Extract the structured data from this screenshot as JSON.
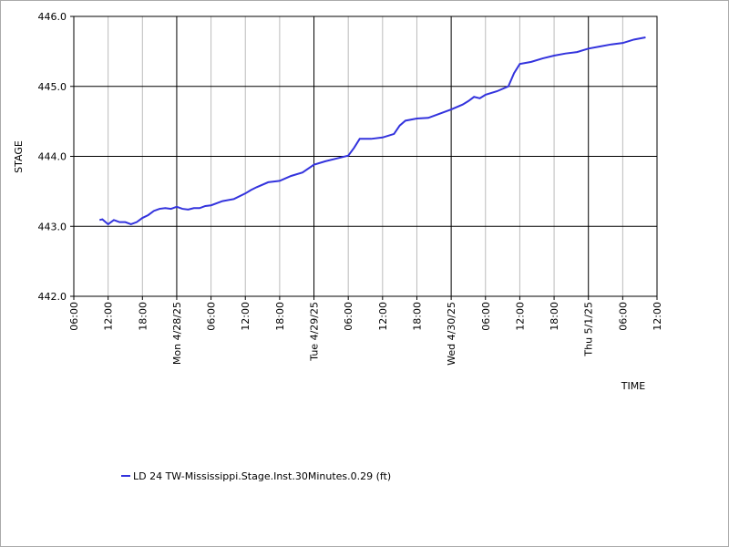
{
  "chart_data": {
    "type": "line",
    "x_label": "TIME",
    "y_label": "STAGE",
    "xlim": [
      "2025-04-27T06:00",
      "2025-05-01T12:00"
    ],
    "xticks": [
      {
        "value": "2025-04-27T06:00",
        "label": "06:00"
      },
      {
        "value": "2025-04-27T12:00",
        "label": "12:00"
      },
      {
        "value": "2025-04-27T18:00",
        "label": "18:00"
      },
      {
        "value": "2025-04-28T00:00",
        "label": "Mon 4/28/25"
      },
      {
        "value": "2025-04-28T06:00",
        "label": "06:00"
      },
      {
        "value": "2025-04-28T12:00",
        "label": "12:00"
      },
      {
        "value": "2025-04-28T18:00",
        "label": "18:00"
      },
      {
        "value": "2025-04-29T00:00",
        "label": "Tue 4/29/25"
      },
      {
        "value": "2025-04-29T06:00",
        "label": "06:00"
      },
      {
        "value": "2025-04-29T12:00",
        "label": "12:00"
      },
      {
        "value": "2025-04-29T18:00",
        "label": "18:00"
      },
      {
        "value": "2025-04-30T00:00",
        "label": "Wed 4/30/25"
      },
      {
        "value": "2025-04-30T06:00",
        "label": "06:00"
      },
      {
        "value": "2025-04-30T12:00",
        "label": "12:00"
      },
      {
        "value": "2025-04-30T18:00",
        "label": "18:00"
      },
      {
        "value": "2025-05-01T00:00",
        "label": "Thu 5/1/25"
      },
      {
        "value": "2025-05-01T06:00",
        "label": "06:00"
      },
      {
        "value": "2025-05-01T12:00",
        "label": "12:00"
      }
    ],
    "ylim": [
      442,
      446
    ],
    "yticks": [
      {
        "value": 442,
        "label": "442.0"
      },
      {
        "value": 443,
        "label": "443.0"
      },
      {
        "value": 444,
        "label": "444.0"
      },
      {
        "value": 445,
        "label": "445.0"
      },
      {
        "value": 446,
        "label": "446.0"
      }
    ],
    "grid": true,
    "legend": "bottom",
    "x": [
      "2025-04-27T10:30",
      "2025-04-27T11:00",
      "2025-04-27T12:00",
      "2025-04-27T13:00",
      "2025-04-27T14:00",
      "2025-04-27T15:00",
      "2025-04-27T16:00",
      "2025-04-27T17:00",
      "2025-04-27T18:00",
      "2025-04-27T19:00",
      "2025-04-27T20:00",
      "2025-04-27T21:00",
      "2025-04-27T22:00",
      "2025-04-27T23:00",
      "2025-04-28T00:00",
      "2025-04-28T01:00",
      "2025-04-28T02:00",
      "2025-04-28T03:00",
      "2025-04-28T04:00",
      "2025-04-28T05:00",
      "2025-04-28T06:00",
      "2025-04-28T08:00",
      "2025-04-28T10:00",
      "2025-04-28T12:00",
      "2025-04-28T13:00",
      "2025-04-28T14:00",
      "2025-04-28T16:00",
      "2025-04-28T18:00",
      "2025-04-28T20:00",
      "2025-04-28T22:00",
      "2025-04-29T00:00",
      "2025-04-29T02:00",
      "2025-04-29T04:00",
      "2025-04-29T06:00",
      "2025-04-29T07:00",
      "2025-04-29T08:00",
      "2025-04-29T09:00",
      "2025-04-29T10:00",
      "2025-04-29T12:00",
      "2025-04-29T14:00",
      "2025-04-29T15:00",
      "2025-04-29T16:00",
      "2025-04-29T18:00",
      "2025-04-29T20:00",
      "2025-04-29T22:00",
      "2025-04-30T00:00",
      "2025-04-30T02:00",
      "2025-04-30T03:00",
      "2025-04-30T04:00",
      "2025-04-30T05:00",
      "2025-04-30T06:00",
      "2025-04-30T08:00",
      "2025-04-30T10:00",
      "2025-04-30T11:00",
      "2025-04-30T12:00",
      "2025-04-30T14:00",
      "2025-04-30T16:00",
      "2025-04-30T18:00",
      "2025-04-30T20:00",
      "2025-04-30T22:00",
      "2025-05-01T00:00",
      "2025-05-01T02:00",
      "2025-05-01T04:00",
      "2025-05-01T06:00",
      "2025-05-01T08:00",
      "2025-05-01T10:00"
    ],
    "series": [
      {
        "name": "LD 24 TW-Mississippi.Stage.Inst.30Minutes.0.29 (ft)",
        "color": "#3333dd",
        "values": [
          443.09,
          443.1,
          443.03,
          443.09,
          443.06,
          443.06,
          443.03,
          443.06,
          443.12,
          443.16,
          443.22,
          443.25,
          443.26,
          443.25,
          443.28,
          443.25,
          443.24,
          443.26,
          443.26,
          443.29,
          443.3,
          443.36,
          443.39,
          443.47,
          443.52,
          443.56,
          443.63,
          443.65,
          443.72,
          443.77,
          443.88,
          443.93,
          443.97,
          444.01,
          444.12,
          444.25,
          444.25,
          444.25,
          444.27,
          444.32,
          444.44,
          444.51,
          444.54,
          444.55,
          444.61,
          444.67,
          444.74,
          444.79,
          444.85,
          444.83,
          444.88,
          444.93,
          445.0,
          445.19,
          445.32,
          445.35,
          445.4,
          445.44,
          445.47,
          445.49,
          445.54,
          445.57,
          445.6,
          445.62,
          445.67,
          445.7
        ]
      }
    ]
  }
}
